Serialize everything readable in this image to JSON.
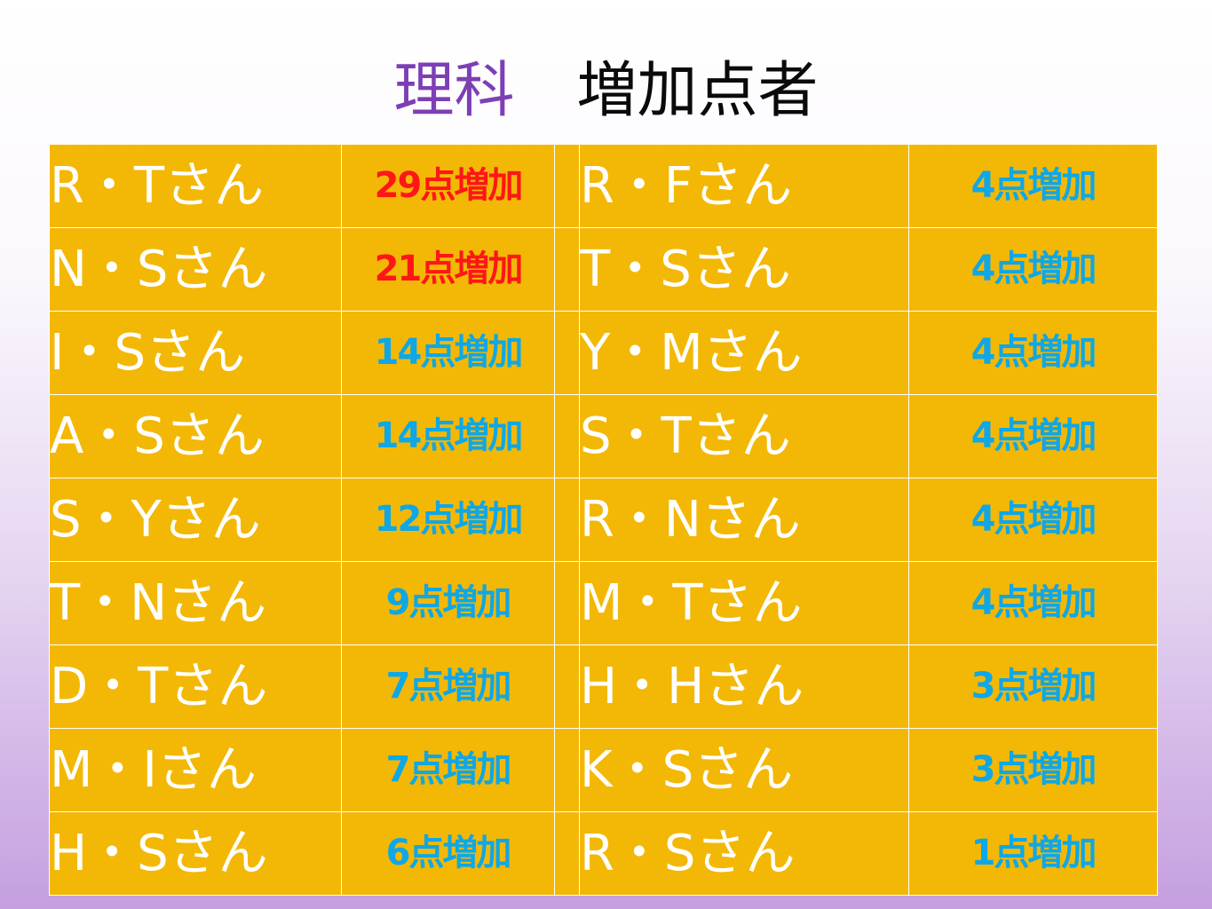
{
  "title": {
    "subject": "理科",
    "heading": "増加点者"
  },
  "colors": {
    "table_background": "#f3b805",
    "name_text": "#ffffff",
    "points_highlight": "#ff1616",
    "points_normal": "#0fa7e6",
    "subject_text": "#7d3fb4"
  },
  "rows": [
    {
      "left_name": "R・Tさん",
      "left_points": "29点増加",
      "left_color": "red",
      "right_name": "R・Fさん",
      "right_points": "4点増加",
      "right_color": "blue"
    },
    {
      "left_name": "N・Sさん",
      "left_points": "21点増加",
      "left_color": "red",
      "right_name": "T・Sさん",
      "right_points": "4点増加",
      "right_color": "blue"
    },
    {
      "left_name": "I・Sさん",
      "left_points": "14点増加",
      "left_color": "blue",
      "right_name": "Y・Mさん",
      "right_points": "4点増加",
      "right_color": "blue"
    },
    {
      "left_name": "A・Sさん",
      "left_points": "14点増加",
      "left_color": "blue",
      "right_name": "S・Tさん",
      "right_points": "4点増加",
      "right_color": "blue"
    },
    {
      "left_name": "S・Yさん",
      "left_points": "12点増加",
      "left_color": "blue",
      "right_name": "R・Nさん",
      "right_points": "4点増加",
      "right_color": "blue"
    },
    {
      "left_name": "T・Nさん",
      "left_points": "9点増加",
      "left_color": "blue",
      "right_name": "M・Tさん",
      "right_points": "4点増加",
      "right_color": "blue"
    },
    {
      "left_name": "D・Tさん",
      "left_points": "7点増加",
      "left_color": "blue",
      "right_name": "H・Hさん",
      "right_points": "3点増加",
      "right_color": "blue"
    },
    {
      "left_name": "M・Iさん",
      "left_points": "7点増加",
      "left_color": "blue",
      "right_name": "K・Sさん",
      "right_points": "3点増加",
      "right_color": "blue"
    },
    {
      "left_name": "H・Sさん",
      "left_points": "6点増加",
      "left_color": "blue",
      "right_name": "R・Sさん",
      "right_points": "1点増加",
      "right_color": "blue"
    }
  ]
}
